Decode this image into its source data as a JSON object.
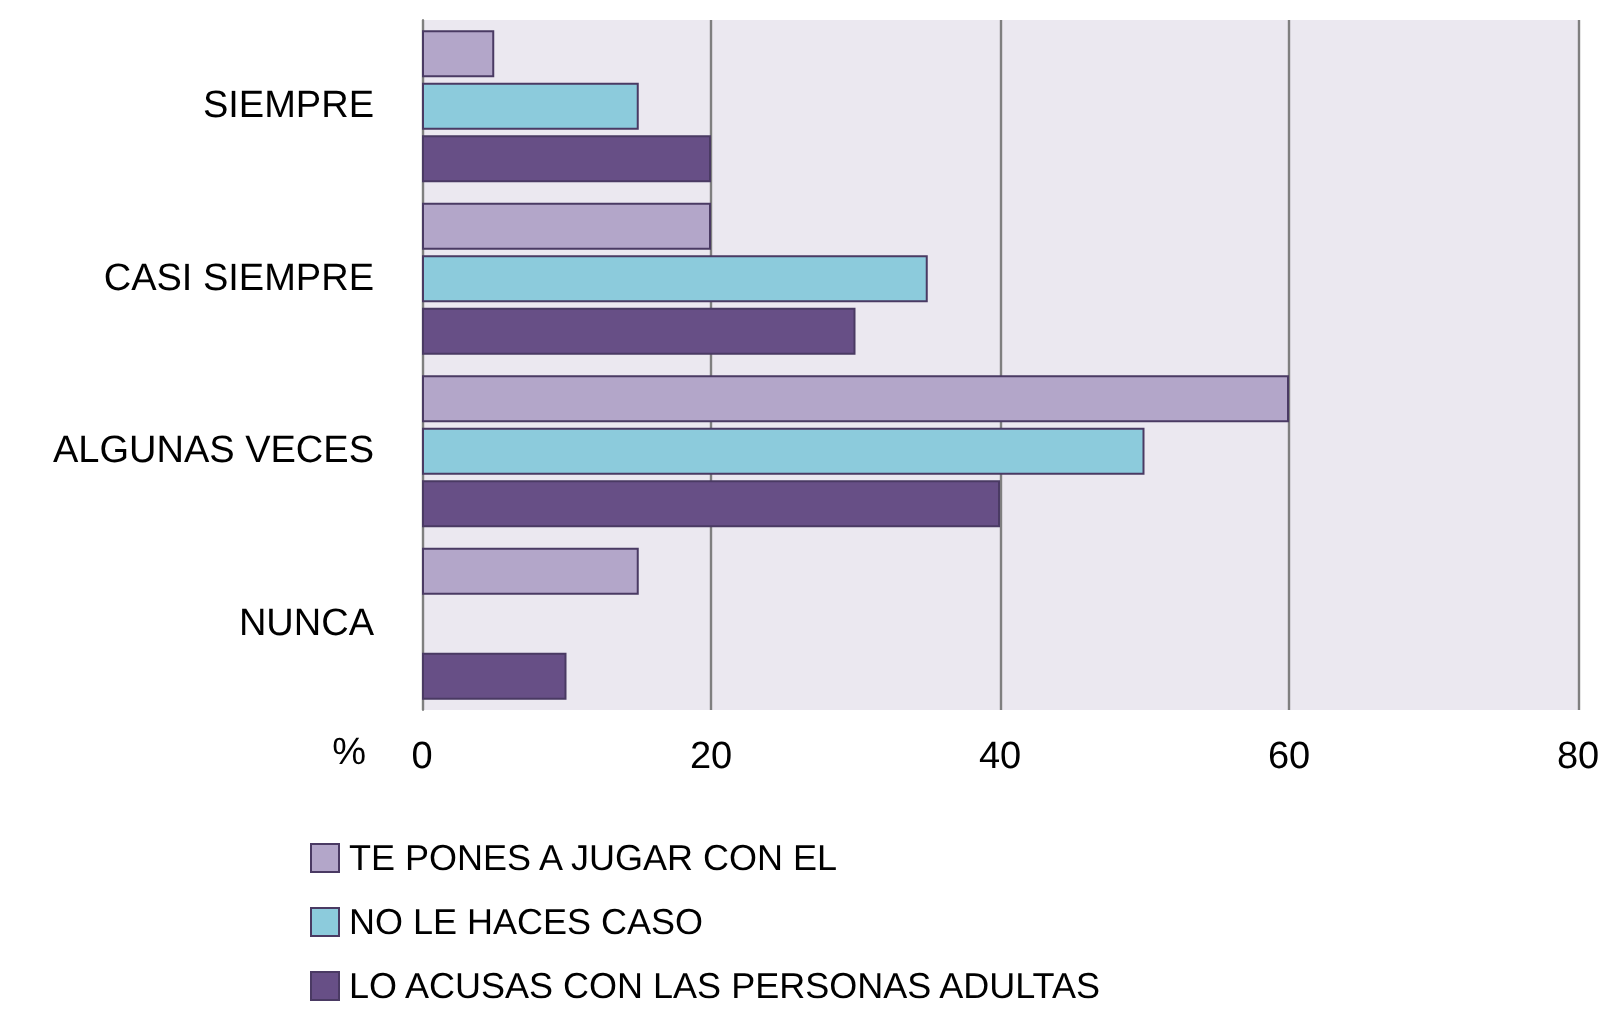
{
  "chart_data": {
    "type": "bar",
    "orientation": "horizontal",
    "xlabel": "%",
    "categories": [
      "SIEMPRE",
      "CASI SIEMPRE",
      "ALGUNAS VECES",
      "NUNCA"
    ],
    "series": [
      {
        "name": "TE PONES A JUGAR CON EL",
        "color": "#b3a6c9",
        "values": [
          5,
          20,
          60,
          15
        ]
      },
      {
        "name": "NO LE HACES CASO",
        "color": "#8ccbdc",
        "values": [
          15,
          35,
          50,
          null
        ]
      },
      {
        "name": "LO ACUSAS CON LAS PERSONAS ADULTAS",
        "color": "#674f86",
        "values": [
          20,
          30,
          40,
          10
        ]
      }
    ],
    "xlim": [
      0,
      80
    ],
    "xticks": [
      0,
      20,
      40,
      60,
      80
    ],
    "grid": "x",
    "legend": "bottom"
  }
}
